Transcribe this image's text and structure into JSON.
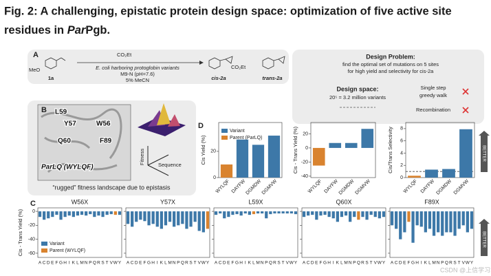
{
  "title": {
    "line1": "Fig. 2: A challenging, epistatic protein design space: optimization of five active site",
    "line2": "residues in ",
    "italic": "Par",
    "suffix": "Pgb."
  },
  "panel_a": {
    "letter": "A",
    "reactant": "1a",
    "meo": "MeO",
    "reagent": "CO₂Et",
    "condition1": "E. coli harboring protoglobin variants",
    "condition2": "M9-N (pH=7.6)",
    "condition3": "5% MeCN",
    "product1": "cis-2a",
    "product2": "trans-2a",
    "ester": "CO₂Et"
  },
  "design_problem": {
    "heading": "Design Problem:",
    "line1": "find the optimal set of mutations on 5 sites",
    "line2": "for high yield and selectivity for cis-2a",
    "space_heading": "Design space:",
    "space": "20⁵ = 3.2 million variants",
    "method1": "Single step",
    "method1b": "greedy walk",
    "method2": "Recombination"
  },
  "panel_b": {
    "letter": "B",
    "residues": [
      "L59",
      "Y57",
      "W56",
      "Q60",
      "F89"
    ],
    "parent": "ParLQ (WYLQF)",
    "axis1": "Fitness",
    "axis2": "Sequence",
    "caption": "“rugged” fitness landscape due to epistasis"
  },
  "panel_d": {
    "letter": "D",
    "legend": [
      {
        "name": "Variant",
        "color": "#3d78a8"
      },
      {
        "name": "Parent (ParLQ)",
        "color": "#d9832f"
      }
    ],
    "better": "BETTER",
    "charts": [
      {
        "type": "bar",
        "ylabel": "Cis Yield (%)",
        "categories": [
          "WYLQF",
          "DAYFW",
          "DGMDW",
          "DGMVW"
        ],
        "values": [
          10,
          29,
          25,
          32
        ],
        "colors": [
          "#d9832f",
          "#3d78a8",
          "#3d78a8",
          "#3d78a8"
        ],
        "ylim": [
          0,
          42
        ],
        "yticks": [
          0,
          20
        ]
      },
      {
        "type": "bar",
        "ylabel": "Cis - Trans Yield (%)",
        "categories": [
          "WYLQF",
          "DAYFW",
          "DGMDW",
          "DGMVW"
        ],
        "values": [
          -25,
          7,
          7,
          27
        ],
        "colors": [
          "#d9832f",
          "#3d78a8",
          "#3d78a8",
          "#3d78a8"
        ],
        "ylim": [
          -42,
          36
        ],
        "yticks": [
          -40,
          -20,
          0,
          20
        ]
      },
      {
        "type": "bar",
        "ylabel": "Cis/Trans Selectivity",
        "categories": [
          "WYLQF",
          "DAYFW",
          "DGMDW",
          "DGMVW"
        ],
        "values": [
          0.3,
          1.3,
          1.4,
          7.9
        ],
        "colors": [
          "#d9832f",
          "#3d78a8",
          "#3d78a8",
          "#3d78a8"
        ],
        "ylim": [
          0,
          9
        ],
        "yticks": [
          0,
          2,
          4,
          6,
          8
        ],
        "ref_line": 1
      }
    ]
  },
  "panel_c": {
    "letter": "C",
    "ylabel": "Cis - Trans Yield (%)",
    "better": "BETTER",
    "legend": [
      {
        "name": "Variant",
        "color": "#3d78a8"
      },
      {
        "name": "Parent (WYLQF)",
        "color": "#d9832f"
      }
    ],
    "ylim": [
      -66,
      5
    ],
    "yticks": [
      0,
      -20,
      -40,
      -60
    ],
    "charts": [
      {
        "type": "bar",
        "title": "W56X",
        "categories": [
          "A",
          "C",
          "D",
          "E",
          "F",
          "G",
          "H",
          "I",
          "K",
          "L",
          "M",
          "N",
          "P",
          "Q",
          "R",
          "S",
          "T",
          "V",
          "W",
          "Y"
        ],
        "values": [
          -8,
          -12,
          -10,
          -8,
          -5,
          -12,
          -8,
          -6,
          -8,
          -6,
          -5,
          -6,
          -4,
          -8,
          -6,
          -8,
          -5,
          -4,
          -5,
          -5
        ],
        "colors": [
          "#3d78a8",
          "#3d78a8",
          "#3d78a8",
          "#3d78a8",
          "#3d78a8",
          "#3d78a8",
          "#3d78a8",
          "#3d78a8",
          "#3d78a8",
          "#3d78a8",
          "#3d78a8",
          "#3d78a8",
          "#3d78a8",
          "#3d78a8",
          "#3d78a8",
          "#3d78a8",
          "#3d78a8",
          "#3d78a8",
          "#d9832f",
          "#3d78a8"
        ]
      },
      {
        "type": "bar",
        "title": "Y57X",
        "categories": [
          "A",
          "C",
          "D",
          "E",
          "F",
          "G",
          "H",
          "I",
          "K",
          "L",
          "M",
          "N",
          "P",
          "Q",
          "R",
          "S",
          "T",
          "V",
          "W",
          "Y"
        ],
        "values": [
          -18,
          -22,
          -15,
          -12,
          -14,
          -20,
          -18,
          -22,
          -25,
          -20,
          -15,
          -22,
          -20,
          -18,
          -25,
          -22,
          -15,
          -28,
          -30,
          -25
        ],
        "colors": [
          "#3d78a8",
          "#3d78a8",
          "#3d78a8",
          "#3d78a8",
          "#3d78a8",
          "#3d78a8",
          "#3d78a8",
          "#3d78a8",
          "#3d78a8",
          "#3d78a8",
          "#3d78a8",
          "#3d78a8",
          "#3d78a8",
          "#3d78a8",
          "#3d78a8",
          "#3d78a8",
          "#3d78a8",
          "#3d78a8",
          "#3d78a8",
          "#d9832f"
        ]
      },
      {
        "type": "bar",
        "title": "L59X",
        "categories": [
          "A",
          "C",
          "D",
          "E",
          "F",
          "G",
          "H",
          "I",
          "K",
          "L",
          "M",
          "N",
          "P",
          "Q",
          "R",
          "S",
          "T",
          "V",
          "W",
          "Y"
        ],
        "values": [
          -5,
          -3,
          -10,
          -8,
          -5,
          -4,
          -6,
          -3,
          -5,
          -4,
          -3,
          -3,
          -10,
          -4,
          -3,
          -3,
          -3,
          -3,
          -3,
          -4
        ],
        "colors": [
          "#3d78a8",
          "#3d78a8",
          "#3d78a8",
          "#3d78a8",
          "#3d78a8",
          "#3d78a8",
          "#3d78a8",
          "#3d78a8",
          "#3d78a8",
          "#d9832f",
          "#3d78a8",
          "#3d78a8",
          "#3d78a8",
          "#3d78a8",
          "#3d78a8",
          "#3d78a8",
          "#3d78a8",
          "#3d78a8",
          "#3d78a8",
          "#3d78a8"
        ]
      },
      {
        "type": "bar",
        "title": "Q60X",
        "categories": [
          "A",
          "C",
          "D",
          "E",
          "F",
          "G",
          "H",
          "I",
          "K",
          "L",
          "M",
          "N",
          "P",
          "Q",
          "R",
          "S",
          "T",
          "V",
          "W",
          "Y"
        ],
        "values": [
          -8,
          -6,
          -5,
          -12,
          -6,
          -5,
          -8,
          -10,
          -15,
          -8,
          -6,
          -15,
          -8,
          -12,
          -8,
          -12,
          -5,
          -8,
          -10,
          -8
        ],
        "colors": [
          "#3d78a8",
          "#3d78a8",
          "#3d78a8",
          "#3d78a8",
          "#3d78a8",
          "#3d78a8",
          "#3d78a8",
          "#3d78a8",
          "#3d78a8",
          "#3d78a8",
          "#3d78a8",
          "#3d78a8",
          "#3d78a8",
          "#d9832f",
          "#3d78a8",
          "#3d78a8",
          "#3d78a8",
          "#3d78a8",
          "#3d78a8",
          "#3d78a8"
        ]
      },
      {
        "type": "bar",
        "title": "F89X",
        "categories": [
          "A",
          "C",
          "D",
          "E",
          "F",
          "G",
          "H",
          "I",
          "K",
          "L",
          "M",
          "N",
          "P",
          "Q",
          "R",
          "S",
          "T",
          "V",
          "W",
          "Y"
        ],
        "values": [
          -20,
          -25,
          -40,
          -30,
          -15,
          -45,
          -20,
          -22,
          -30,
          -25,
          -35,
          -30,
          -35,
          -30,
          -30,
          -35,
          -25,
          -20,
          -30,
          -25
        ],
        "colors": [
          "#3d78a8",
          "#3d78a8",
          "#3d78a8",
          "#3d78a8",
          "#d9832f",
          "#3d78a8",
          "#3d78a8",
          "#3d78a8",
          "#3d78a8",
          "#3d78a8",
          "#3d78a8",
          "#3d78a8",
          "#3d78a8",
          "#3d78a8",
          "#3d78a8",
          "#3d78a8",
          "#3d78a8",
          "#3d78a8",
          "#3d78a8",
          "#3d78a8"
        ]
      }
    ]
  },
  "watermark": "CSDN @上信学习笔记1"
}
